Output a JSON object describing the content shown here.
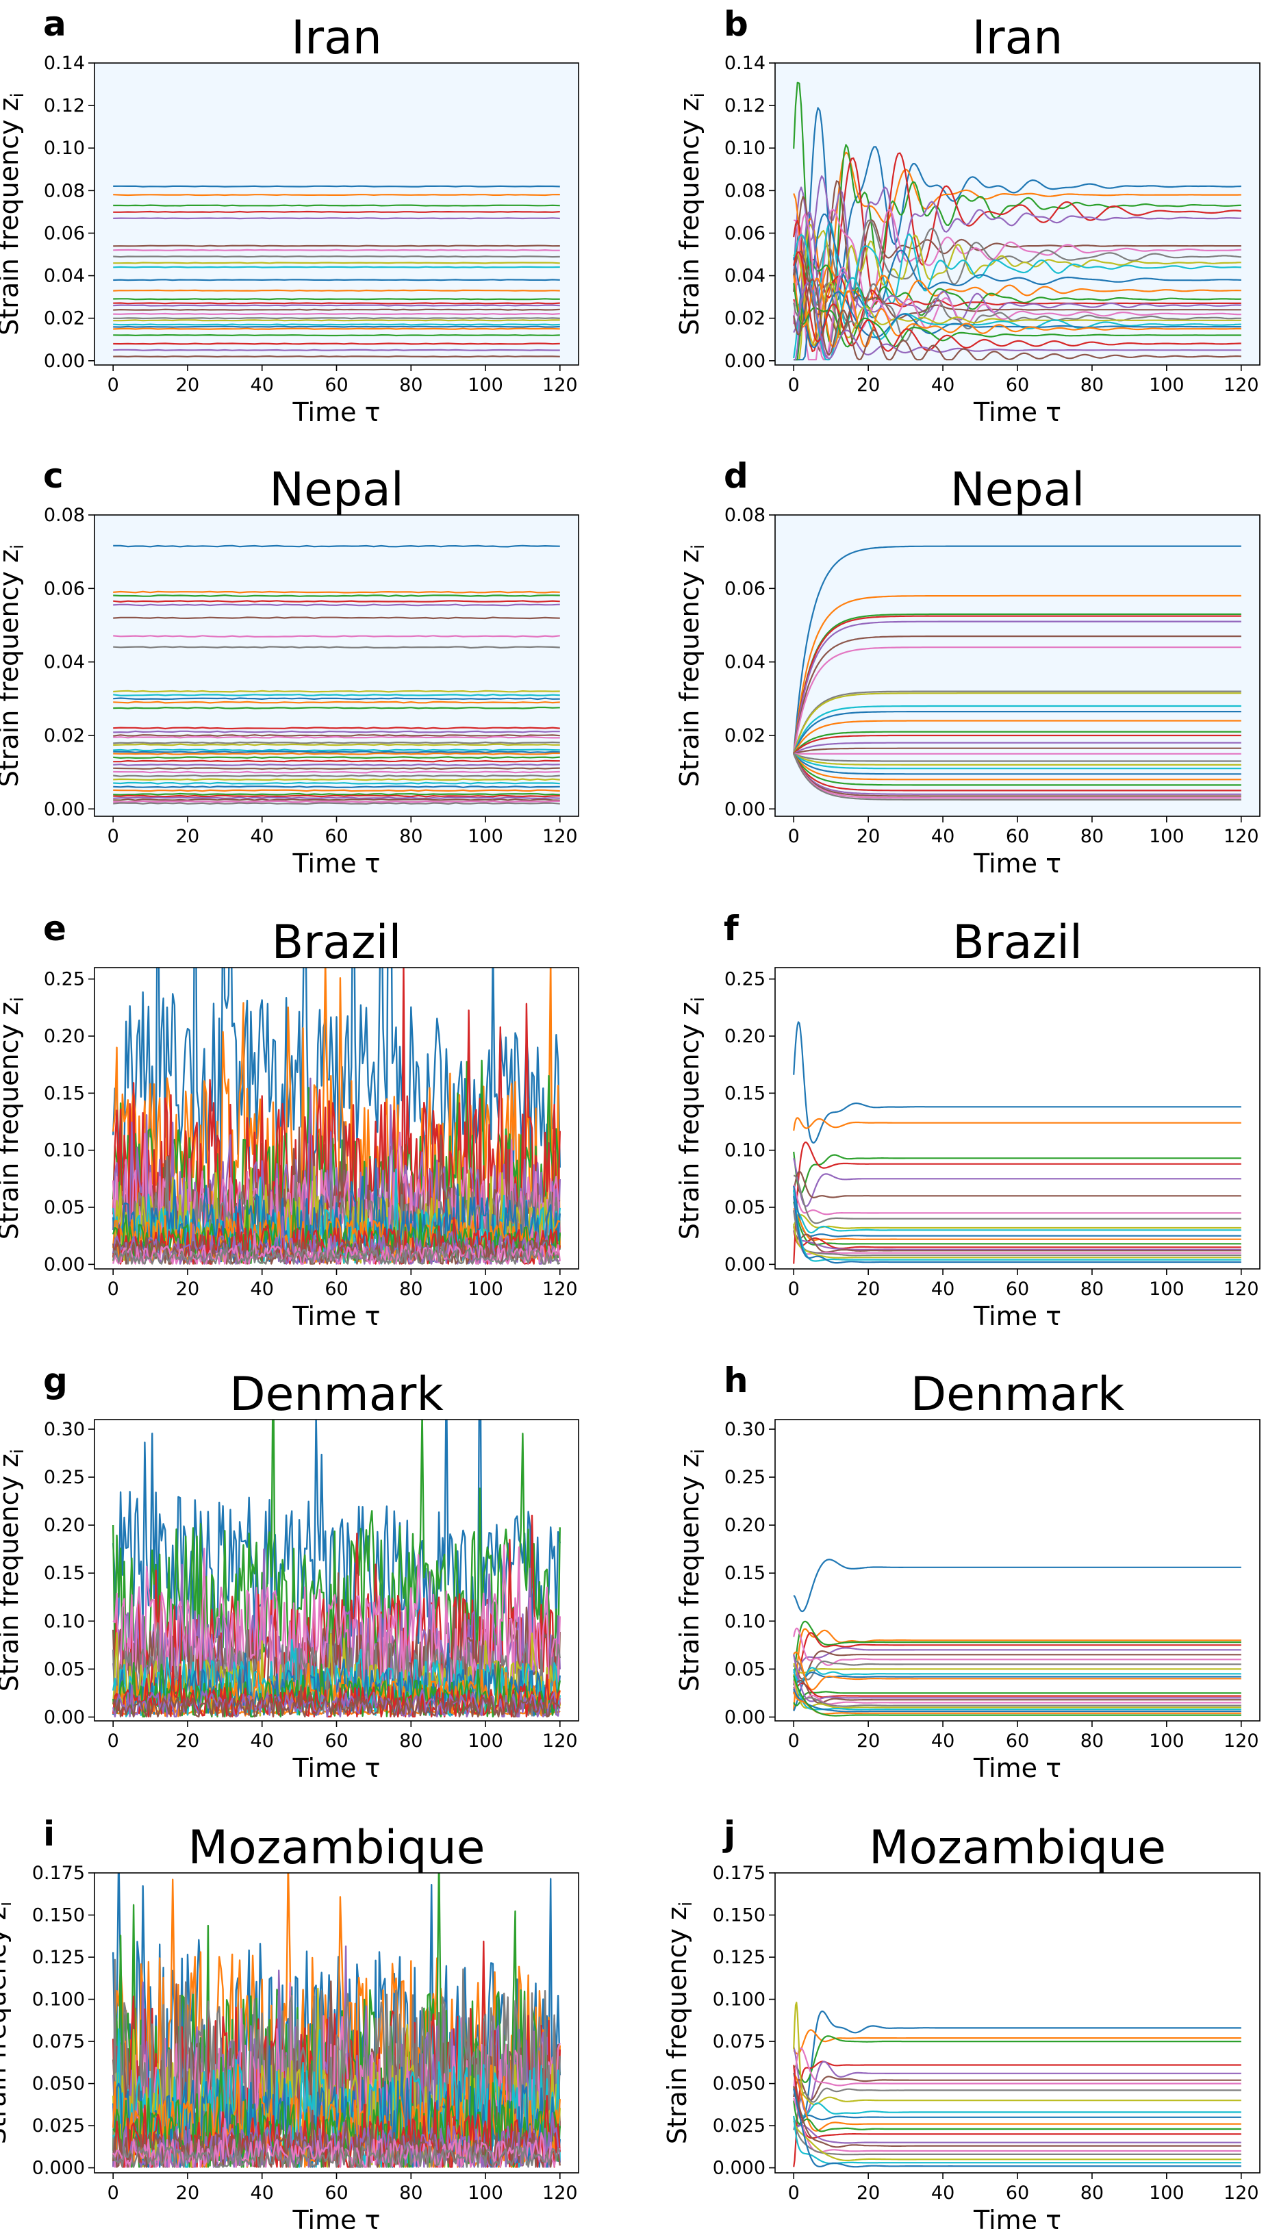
{
  "colors": {
    "plot_bg_shaded": "#f0f8ff",
    "plot_bg_plain": "#ffffff",
    "palette": [
      "#1f77b4",
      "#ff7f0e",
      "#2ca02c",
      "#d62728",
      "#9467bd",
      "#8c564b",
      "#e377c2",
      "#7f7f7f",
      "#bcbd22",
      "#17becf"
    ]
  },
  "labels": {
    "ylabel": "Strain frequency z",
    "ylabel_sub": "i",
    "xlabel": "Time τ"
  },
  "chart_data": [
    {
      "letter": "a",
      "title": "Iran",
      "type": "line",
      "background": "shaded",
      "xlim": [
        -5,
        125
      ],
      "ylim": [
        -0.002,
        0.14
      ],
      "xticks": [
        0,
        20,
        40,
        60,
        80,
        100,
        120
      ],
      "xtick_labels": [
        "0",
        "20",
        "40",
        "60",
        "80",
        "100",
        "120"
      ],
      "yticks": [
        0,
        0.02,
        0.04,
        0.06,
        0.08,
        0.1,
        0.12,
        0.14
      ],
      "ytick_labels": [
        "0.00",
        "0.02",
        "0.04",
        "0.06",
        "0.08",
        "0.10",
        "0.12",
        "0.14"
      ],
      "behavior": "constant",
      "levels": [
        0.082,
        0.078,
        0.073,
        0.07,
        0.067,
        0.054,
        0.052,
        0.049,
        0.046,
        0.044,
        0.038,
        0.033,
        0.029,
        0.027,
        0.026,
        0.024,
        0.022,
        0.02,
        0.019,
        0.017,
        0.016,
        0.015,
        0.012,
        0.008,
        0.005,
        0.002
      ]
    },
    {
      "letter": "b",
      "title": "Iran",
      "type": "line",
      "background": "shaded",
      "xlim": [
        -5,
        125
      ],
      "ylim": [
        -0.002,
        0.14
      ],
      "xticks": [
        0,
        20,
        40,
        60,
        80,
        100,
        120
      ],
      "xtick_labels": [
        "0",
        "20",
        "40",
        "60",
        "80",
        "100",
        "120"
      ],
      "yticks": [
        0,
        0.02,
        0.04,
        0.06,
        0.08,
        0.1,
        0.12,
        0.14
      ],
      "ytick_labels": [
        "0.00",
        "0.02",
        "0.04",
        "0.06",
        "0.08",
        "0.10",
        "0.12",
        "0.14"
      ],
      "behavior": "oscillating_damped",
      "start": 0.033,
      "decay": 18,
      "amp": 0.9,
      "levels": [
        0.082,
        0.078,
        0.073,
        0.07,
        0.067,
        0.054,
        0.052,
        0.049,
        0.046,
        0.044,
        0.038,
        0.033,
        0.029,
        0.027,
        0.026,
        0.024,
        0.022,
        0.02,
        0.019,
        0.017,
        0.016,
        0.015,
        0.012,
        0.008,
        0.005,
        0.002
      ],
      "peak": {
        "series": 4,
        "t": 3.5,
        "value": 0.131
      }
    },
    {
      "letter": "c",
      "title": "Nepal",
      "type": "line",
      "background": "shaded",
      "xlim": [
        -5,
        125
      ],
      "ylim": [
        -0.002,
        0.08
      ],
      "xticks": [
        0,
        20,
        40,
        60,
        80,
        100,
        120
      ],
      "xtick_labels": [
        "0",
        "20",
        "40",
        "60",
        "80",
        "100",
        "120"
      ],
      "yticks": [
        0,
        0.02,
        0.04,
        0.06,
        0.08
      ],
      "ytick_labels": [
        "0.00",
        "0.02",
        "0.04",
        "0.06",
        "0.08"
      ],
      "behavior": "constant",
      "levels": [
        0.0715,
        0.059,
        0.058,
        0.0565,
        0.0555,
        0.052,
        0.047,
        0.044,
        0.032,
        0.031,
        0.03,
        0.029,
        0.0275,
        0.022,
        0.021,
        0.02,
        0.0195,
        0.018,
        0.0175,
        0.016,
        0.0155,
        0.015,
        0.014,
        0.013,
        0.012,
        0.011,
        0.01,
        0.009,
        0.008,
        0.007,
        0.006,
        0.005,
        0.004,
        0.0035,
        0.003,
        0.0025,
        0.002,
        0.0015
      ]
    },
    {
      "letter": "d",
      "title": "Nepal",
      "type": "line",
      "background": "shaded",
      "xlim": [
        -5,
        125
      ],
      "ylim": [
        -0.002,
        0.08
      ],
      "xticks": [
        0,
        20,
        40,
        60,
        80,
        100,
        120
      ],
      "xtick_labels": [
        "0",
        "20",
        "40",
        "60",
        "80",
        "100",
        "120"
      ],
      "yticks": [
        0,
        0.02,
        0.04,
        0.06,
        0.08
      ],
      "ytick_labels": [
        "0.00",
        "0.02",
        "0.04",
        "0.06",
        "0.08"
      ],
      "behavior": "exp_relax",
      "start": 0.015,
      "rate": 0.22,
      "levels": [
        0.0715,
        0.058,
        0.053,
        0.0525,
        0.051,
        0.047,
        0.044,
        0.032,
        0.0315,
        0.028,
        0.0265,
        0.024,
        0.021,
        0.02,
        0.018,
        0.0165,
        0.015,
        0.013,
        0.012,
        0.011,
        0.0095,
        0.008,
        0.0065,
        0.005,
        0.004,
        0.0035,
        0.003,
        0.0025
      ]
    },
    {
      "letter": "e",
      "title": "Brazil",
      "type": "line",
      "background": "plain",
      "xlim": [
        -5,
        125
      ],
      "ylim": [
        -0.004,
        0.26
      ],
      "xticks": [
        0,
        20,
        40,
        60,
        80,
        100,
        120
      ],
      "xtick_labels": [
        "0",
        "20",
        "40",
        "60",
        "80",
        "100",
        "120"
      ],
      "yticks": [
        0,
        0.05,
        0.1,
        0.15,
        0.2,
        0.25
      ],
      "ytick_labels": [
        "0.00",
        "0.05",
        "0.10",
        "0.15",
        "0.20",
        "0.25"
      ],
      "behavior": "noisy",
      "levels": [
        0.165,
        0.085,
        0.06,
        0.075,
        0.05,
        0.04,
        0.045,
        0.035,
        0.03,
        0.025,
        0.03,
        0.02,
        0.018,
        0.015,
        0.012,
        0.01,
        0.008,
        0.006
      ],
      "noise": [
        0.35,
        0.7,
        0.7,
        0.7,
        0.6,
        0.6,
        0.6,
        0.6,
        0.7,
        0.7,
        0.7,
        0.7,
        0.7,
        0.8,
        0.8,
        0.8,
        0.8,
        0.8
      ]
    },
    {
      "letter": "f",
      "title": "Brazil",
      "type": "line",
      "background": "plain",
      "xlim": [
        -5,
        125
      ],
      "ylim": [
        -0.004,
        0.26
      ],
      "xticks": [
        0,
        20,
        40,
        60,
        80,
        100,
        120
      ],
      "xtick_labels": [
        "0",
        "20",
        "40",
        "60",
        "80",
        "100",
        "120"
      ],
      "yticks": [
        0,
        0.05,
        0.1,
        0.15,
        0.2,
        0.25
      ],
      "ytick_labels": [
        "0.00",
        "0.05",
        "0.10",
        "0.15",
        "0.20",
        "0.25"
      ],
      "behavior": "fast_settle",
      "start": 0.05,
      "decay": 3.5,
      "amp": 0.6,
      "levels": [
        0.138,
        0.124,
        0.093,
        0.088,
        0.075,
        0.06,
        0.045,
        0.04,
        0.032,
        0.03,
        0.025,
        0.022,
        0.018,
        0.015,
        0.013,
        0.012,
        0.01,
        0.008,
        0.006,
        0.004,
        0.002
      ],
      "peak": {
        "series": 0,
        "t": 1.5,
        "value": 0.182
      }
    },
    {
      "letter": "g",
      "title": "Denmark",
      "type": "line",
      "background": "plain",
      "xlim": [
        -5,
        125
      ],
      "ylim": [
        -0.004,
        0.31
      ],
      "xticks": [
        0,
        20,
        40,
        60,
        80,
        100,
        120
      ],
      "xtick_labels": [
        "0",
        "20",
        "40",
        "60",
        "80",
        "100",
        "120"
      ],
      "yticks": [
        0,
        0.05,
        0.1,
        0.15,
        0.2,
        0.25,
        0.3
      ],
      "ytick_labels": [
        "0.00",
        "0.05",
        "0.10",
        "0.15",
        "0.20",
        "0.25",
        "0.30"
      ],
      "behavior": "noisy",
      "levels": [
        0.16,
        0.005,
        0.12,
        0.07,
        0.06,
        0.05,
        0.08,
        0.04,
        0.03,
        0.03,
        0.025,
        0.02,
        0.018,
        0.015,
        0.012,
        0.01
      ],
      "noise": [
        0.35,
        0.3,
        0.5,
        0.6,
        0.6,
        0.6,
        0.5,
        0.7,
        0.7,
        0.7,
        0.7,
        0.7,
        0.8,
        0.8,
        0.8,
        0.8
      ]
    },
    {
      "letter": "h",
      "title": "Denmark",
      "type": "line",
      "background": "plain",
      "xlim": [
        -5,
        125
      ],
      "ylim": [
        -0.004,
        0.31
      ],
      "xticks": [
        0,
        20,
        40,
        60,
        80,
        100,
        120
      ],
      "xtick_labels": [
        "0",
        "20",
        "40",
        "60",
        "80",
        "100",
        "120"
      ],
      "yticks": [
        0,
        0.05,
        0.1,
        0.15,
        0.2,
        0.25,
        0.3
      ],
      "ytick_labels": [
        "0.00",
        "0.05",
        "0.10",
        "0.15",
        "0.20",
        "0.25",
        "0.30"
      ],
      "behavior": "fast_settle",
      "start": 0.04,
      "decay": 3.5,
      "amp": 0.6,
      "levels": [
        0.156,
        0.08,
        0.078,
        0.075,
        0.07,
        0.065,
        0.06,
        0.055,
        0.05,
        0.045,
        0.042,
        0.04,
        0.025,
        0.022,
        0.02,
        0.018,
        0.015,
        0.012,
        0.01,
        0.008,
        0.006,
        0.004,
        0.002
      ],
      "peak": {
        "series": 0,
        "t": 4,
        "value": 0.178
      }
    },
    {
      "letter": "i",
      "title": "Mozambique",
      "type": "line",
      "background": "plain",
      "xlim": [
        -5,
        125
      ],
      "ylim": [
        -0.003,
        0.175
      ],
      "xticks": [
        0,
        20,
        40,
        60,
        80,
        100,
        120
      ],
      "xtick_labels": [
        "0",
        "20",
        "40",
        "60",
        "80",
        "100",
        "120"
      ],
      "yticks": [
        0,
        0.025,
        0.05,
        0.075,
        0.1,
        0.125,
        0.15,
        0.175
      ],
      "ytick_labels": [
        "0.000",
        "0.025",
        "0.050",
        "0.075",
        "0.100",
        "0.125",
        "0.150",
        "0.175"
      ],
      "behavior": "noisy",
      "levels": [
        0.07,
        0.06,
        0.05,
        0.045,
        0.04,
        0.035,
        0.035,
        0.05,
        0.03,
        0.03,
        0.025,
        0.02,
        0.02,
        0.015,
        0.012,
        0.01,
        0.008,
        0.006
      ],
      "noise": [
        0.7,
        0.8,
        0.8,
        0.8,
        0.8,
        0.8,
        0.8,
        0.8,
        0.8,
        0.8,
        0.8,
        0.8,
        0.8,
        0.8,
        0.8,
        0.8,
        0.8,
        0.8
      ]
    },
    {
      "letter": "j",
      "title": "Mozambique",
      "type": "line",
      "background": "plain",
      "xlim": [
        -5,
        125
      ],
      "ylim": [
        -0.003,
        0.175
      ],
      "xticks": [
        0,
        20,
        40,
        60,
        80,
        100,
        120
      ],
      "xtick_labels": [
        "0",
        "20",
        "40",
        "60",
        "80",
        "100",
        "120"
      ],
      "yticks": [
        0,
        0.025,
        0.05,
        0.075,
        0.1,
        0.125,
        0.15,
        0.175
      ],
      "ytick_labels": [
        "0.000",
        "0.025",
        "0.050",
        "0.075",
        "0.100",
        "0.125",
        "0.150",
        "0.175"
      ],
      "behavior": "fast_settle",
      "start": 0.04,
      "decay": 4,
      "amp": 0.6,
      "levels": [
        0.083,
        0.077,
        0.075,
        0.061,
        0.056,
        0.052,
        0.05,
        0.046,
        0.04,
        0.033,
        0.03,
        0.026,
        0.023,
        0.02,
        0.015,
        0.013,
        0.01,
        0.008,
        0.005,
        0.003,
        0.001
      ],
      "peak": {
        "series": 8,
        "t": 0.6,
        "value": 0.105
      }
    }
  ]
}
